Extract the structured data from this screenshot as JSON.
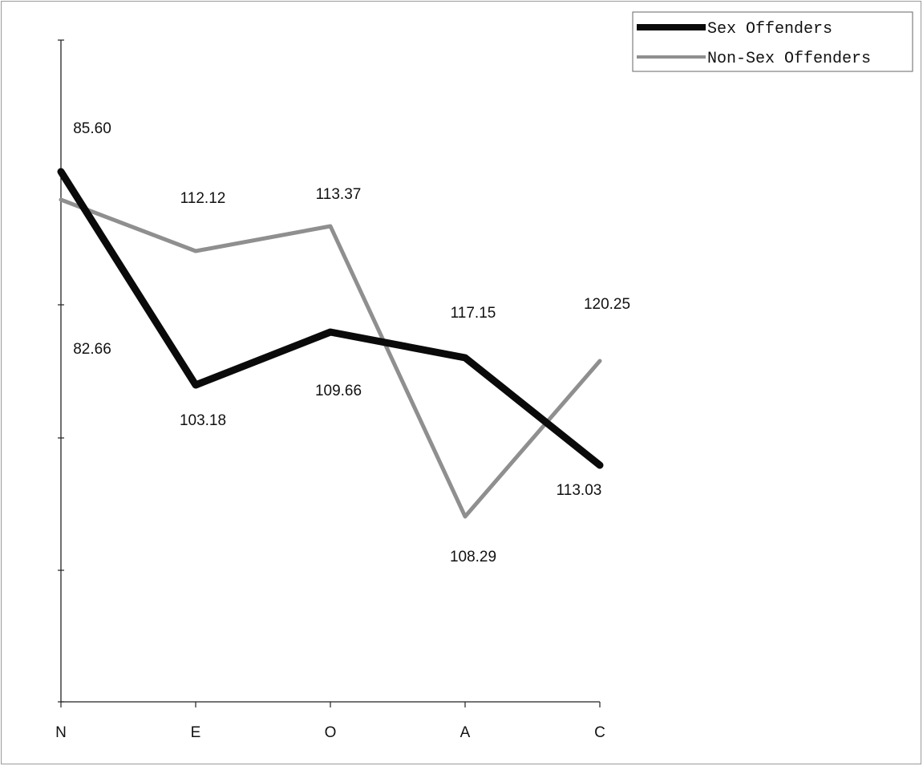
{
  "chart_data": {
    "type": "line",
    "categories": [
      "N",
      "E",
      "O",
      "A",
      "C"
    ],
    "series": [
      {
        "name": "Sex Offenders",
        "values": [
          82.66,
          103.18,
          109.66,
          108.29,
          113.03
        ],
        "color": "#0a0a0a"
      },
      {
        "name": "Non-Sex Offenders",
        "values": [
          85.6,
          112.12,
          113.37,
          117.15,
          120.25
        ],
        "color": "#8f8f8f"
      }
    ],
    "data_labels": [
      {
        "category": "N",
        "text": "85.60"
      },
      {
        "category": "N",
        "text": "82.66"
      },
      {
        "category": "E",
        "text": "112.12"
      },
      {
        "category": "E",
        "text": "103.18"
      },
      {
        "category": "O",
        "text": "113.37"
      },
      {
        "category": "O",
        "text": "109.66"
      },
      {
        "category": "A",
        "text": "117.15"
      },
      {
        "category": "A",
        "text": "108.29"
      },
      {
        "category": "C",
        "text": "120.25"
      },
      {
        "category": "C",
        "text": "113.03"
      }
    ],
    "title": "",
    "xlabel": "",
    "ylabel": "",
    "y_ticks_labeled": false,
    "grid": false,
    "legend_position": "top-right"
  }
}
